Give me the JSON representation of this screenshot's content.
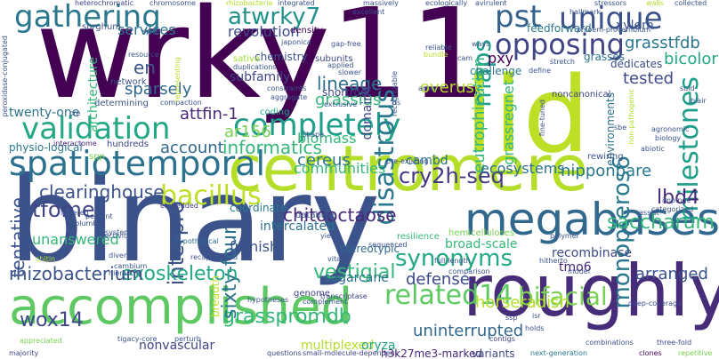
{
  "words": [
    {
      "id": "w0",
      "text": "wrky11",
      "color": "#440154"
    },
    {
      "id": "w1",
      "text": "binary",
      "color": "#3b528b"
    },
    {
      "id": "w2",
      "text": "iid",
      "color": "#bddf26"
    },
    {
      "id": "w3",
      "text": "centromere",
      "color": "#b5de2b"
    },
    {
      "id": "w4",
      "text": "roughly",
      "color": "#472c7a"
    },
    {
      "id": "w5",
      "text": "accomplished",
      "color": "#5ec962"
    },
    {
      "id": "w6",
      "text": "spatiotemporal",
      "color": "#2c728e"
    },
    {
      "id": "w7",
      "text": "megabases",
      "color": "#31688e"
    },
    {
      "id": "w8",
      "text": "gathering",
      "color": "#2a788e"
    },
    {
      "id": "w9",
      "text": "unique",
      "color": "#3b528b"
    },
    {
      "id": "w10",
      "text": "opposing",
      "color": "#414487"
    },
    {
      "id": "w11",
      "text": "pst",
      "color": "#33638d"
    },
    {
      "id": "w12",
      "text": "atwrky7",
      "color": "#21918c"
    },
    {
      "id": "w13",
      "text": "validation",
      "color": "#22a884"
    },
    {
      "id": "w14",
      "text": "completely",
      "color": "#1f9e89"
    },
    {
      "id": "w15",
      "text": "bacillus",
      "color": "#bddf26"
    },
    {
      "id": "w16",
      "text": "related14",
      "color": "#5ec962"
    },
    {
      "id": "w17",
      "text": "synonyms",
      "color": "#22a884"
    },
    {
      "id": "w18",
      "text": "bifacial",
      "color": "#7ad151"
    },
    {
      "id": "w19",
      "text": "grasspromdb",
      "color": "#35b779"
    },
    {
      "id": "w20",
      "text": "wox14",
      "color": "#3e4989"
    },
    {
      "id": "w21",
      "text": "maps",
      "color": "#1f9e89"
    },
    {
      "id": "w22",
      "text": "milestones",
      "color": "#1f9e89"
    },
    {
      "id": "w23",
      "text": "disastrous",
      "color": "#2a788e"
    },
    {
      "id": "w24",
      "text": "monopteros6",
      "color": "#2a788e"
    },
    {
      "id": "w25",
      "text": "chitooctaose",
      "color": "#482878"
    },
    {
      "id": "w26",
      "text": "cry2h-seq",
      "color": "#443983"
    },
    {
      "id": "w27",
      "text": "lbd4",
      "color": "#482878"
    },
    {
      "id": "w28",
      "text": "saccharum",
      "color": "#35b779"
    },
    {
      "id": "w29",
      "text": "interpro",
      "color": "#3b528b"
    },
    {
      "id": "w30",
      "text": "tfome",
      "color": "#414487"
    },
    {
      "id": "w31",
      "text": "sixty-four",
      "color": "#2c728e"
    },
    {
      "id": "w32",
      "text": "exoskeleton",
      "color": "#22a884"
    },
    {
      "id": "w33",
      "text": "rhizobacterium",
      "color": "#3b528b"
    },
    {
      "id": "w34",
      "text": "vestigial",
      "color": "#35b779"
    },
    {
      "id": "w35",
      "text": "defense",
      "color": "#3e4989"
    },
    {
      "id": "w36",
      "text": "uninterrupted",
      "color": "#31688e"
    },
    {
      "id": "w37",
      "text": "horseradish",
      "color": "#b5de2b"
    },
    {
      "id": "w38",
      "text": "arranged",
      "color": "#3b528b"
    },
    {
      "id": "w39",
      "text": "en",
      "color": "#3b528b"
    },
    {
      "id": "w40",
      "text": "sparsely",
      "color": "#31688e"
    },
    {
      "id": "w41",
      "text": "lineage",
      "color": "#2c728e"
    },
    {
      "id": "w42",
      "text": "grassius",
      "color": "#35b779"
    },
    {
      "id": "w43",
      "text": "eutrophication",
      "color": "#35b779"
    },
    {
      "id": "w44",
      "text": "grassregnet",
      "color": "#35b779"
    },
    {
      "id": "w45",
      "text": "grasstfdb",
      "color": "#2a788e"
    },
    {
      "id": "w46",
      "text": "bicolor",
      "color": "#22a884"
    },
    {
      "id": "w47",
      "text": "tested",
      "color": "#3e4989"
    },
    {
      "id": "w48",
      "text": "overuse",
      "color": "#b5de2b"
    },
    {
      "id": "w49",
      "text": "services",
      "color": "#2c728e"
    },
    {
      "id": "w50",
      "text": "revolution",
      "color": "#3e4989"
    },
    {
      "id": "w51",
      "text": "xylem",
      "color": "#3b528b"
    },
    {
      "id": "w52",
      "text": "pxy",
      "color": "#440154"
    },
    {
      "id": "w53",
      "text": "attfin-1",
      "color": "#482878"
    },
    {
      "id": "w54",
      "text": "informatics",
      "color": "#35b779"
    },
    {
      "id": "w55",
      "text": "account",
      "color": "#31688e"
    },
    {
      "id": "w56",
      "text": "cereus",
      "color": "#2a788e"
    },
    {
      "id": "w57",
      "text": "biomass",
      "color": "#35b779"
    },
    {
      "id": "w58",
      "text": "communities",
      "color": "#35b779"
    },
    {
      "id": "w59",
      "text": "clearinghouse",
      "color": "#3b528b"
    },
    {
      "id": "w60",
      "text": "tentative",
      "color": "#3b528b"
    },
    {
      "id": "w61",
      "text": "unanswered",
      "color": "#35b779"
    },
    {
      "id": "w62",
      "text": "furnish",
      "color": "#3b528b"
    },
    {
      "id": "w63",
      "text": "sugarcane",
      "color": "#2c728e"
    },
    {
      "id": "w64",
      "text": "ecosystems",
      "color": "#2c728e"
    },
    {
      "id": "w65",
      "text": "nipponbare",
      "color": "#2a788e"
    },
    {
      "id": "w66",
      "text": "architecture",
      "color": "#35b779"
    },
    {
      "id": "w67",
      "text": "ar156",
      "color": "#7ad151"
    },
    {
      "id": "w68",
      "text": "cambd",
      "color": "#2c728e"
    },
    {
      "id": "w69",
      "text": "twenty-one",
      "color": "#2c728e"
    },
    {
      "id": "w70",
      "text": "nonvascular",
      "color": "#414487"
    },
    {
      "id": "w71",
      "text": "multiplexed",
      "color": "#b5de2b"
    },
    {
      "id": "w72",
      "text": "domain4",
      "color": "#414487"
    },
    {
      "id": "w73",
      "text": "tmo6",
      "color": "#482878"
    },
    {
      "id": "w74",
      "text": "intercalated",
      "color": "#2c728e"
    },
    {
      "id": "w75",
      "text": "broad-scale",
      "color": "#35b779"
    },
    {
      "id": "w76",
      "text": "recombinase",
      "color": "#3e4989"
    },
    {
      "id": "w77",
      "text": "oryza",
      "color": "#22a884"
    },
    {
      "id": "w78",
      "text": "h3k27me3-marked",
      "color": "#482878"
    },
    {
      "id": "w79",
      "text": "variants",
      "color": "#3e4989"
    },
    {
      "id": "w80",
      "text": "breadth",
      "color": "#bddf26"
    },
    {
      "id": "w81",
      "text": "stereotypic",
      "color": "#31688e"
    },
    {
      "id": "w82",
      "text": "shortroot",
      "color": "#414487"
    },
    {
      "id": "w83",
      "text": "subfamily",
      "color": "#414487"
    },
    {
      "id": "w84",
      "text": "chemistry",
      "color": "#3b528b"
    },
    {
      "id": "w85",
      "text": "coordinate",
      "color": "#2a788e"
    },
    {
      "id": "w86",
      "text": "sorghum",
      "color": "#3b528b"
    },
    {
      "id": "w87",
      "text": "density",
      "color": "#440154"
    },
    {
      "id": "w88",
      "text": "network",
      "color": "#3b528b"
    },
    {
      "id": "w89",
      "text": "feedforward",
      "color": "#2a788e"
    },
    {
      "id": "w90",
      "text": "challenge",
      "color": "#2a788e"
    },
    {
      "id": "w91",
      "text": "dedicates",
      "color": "#3e4989"
    },
    {
      "id": "w92",
      "text": "grasses",
      "color": "#2c728e"
    },
    {
      "id": "w93",
      "text": "environments",
      "color": "#2c728e"
    },
    {
      "id": "w94",
      "text": "coding",
      "color": "#22a884"
    },
    {
      "id": "w95",
      "text": "sativa",
      "color": "#a0da39"
    },
    {
      "id": "w96",
      "text": "database",
      "color": "#3b528b"
    },
    {
      "id": "w97",
      "text": "hemicelluloses",
      "color": "#7ad151"
    },
    {
      "id": "w98",
      "text": "resilience",
      "color": "#35b779"
    },
    {
      "id": "w99",
      "text": "rewiring",
      "color": "#3b528b"
    },
    {
      "id": "w100",
      "text": "noncanonical",
      "color": "#414487"
    },
    {
      "id": "w101",
      "text": "determining",
      "color": "#3b528b"
    },
    {
      "id": "w102",
      "text": "subunits",
      "color": "#3e4989"
    },
    {
      "id": "w103",
      "text": "hundreds",
      "color": "#414487"
    },
    {
      "id": "w104",
      "text": "physio-logical",
      "color": "#2a788e"
    },
    {
      "id": "w105",
      "text": "spp",
      "color": "#7ad151"
    },
    {
      "id": "w106",
      "text": "interactome",
      "color": "#482878"
    },
    {
      "id": "w107",
      "text": "lowered",
      "color": "#3b528b"
    },
    {
      "id": "w108",
      "text": "embedded",
      "color": "#414487"
    },
    {
      "id": "w109",
      "text": "hypothetical",
      "color": "#31688e"
    },
    {
      "id": "w110",
      "text": "genome",
      "color": "#414487"
    },
    {
      "id": "w111",
      "text": "transcriptase",
      "color": "#414487"
    },
    {
      "id": "w112",
      "text": "deep-coverage",
      "color": "#3e4989"
    },
    {
      "id": "w113",
      "text": "appreciated",
      "color": "#7ad151"
    },
    {
      "id": "w114",
      "text": "majority",
      "color": "#414487"
    },
    {
      "id": "w115",
      "text": "tigacy-core",
      "color": "#3b528b"
    },
    {
      "id": "w116",
      "text": "perturb",
      "color": "#3b528b"
    },
    {
      "id": "w117",
      "text": "questions",
      "color": "#3e4989"
    },
    {
      "id": "w118",
      "text": "small-molecule-dependent",
      "color": "#414487"
    },
    {
      "id": "w119",
      "text": "next-generation",
      "color": "#2a788e"
    },
    {
      "id": "w120",
      "text": "combinations",
      "color": "#3b528b"
    },
    {
      "id": "w121",
      "text": "clones",
      "color": "#440154"
    },
    {
      "id": "w122",
      "text": "three-fold",
      "color": "#3e4989"
    },
    {
      "id": "w123",
      "text": "repetitive",
      "color": "#7ad151"
    },
    {
      "id": "w124",
      "text": "contigs",
      "color": "#414487"
    },
    {
      "id": "w125",
      "text": "holds",
      "color": "#3b528b"
    },
    {
      "id": "w126",
      "text": "ssp",
      "color": "#3e4989"
    },
    {
      "id": "w127",
      "text": "heterochromatic",
      "color": "#414487"
    },
    {
      "id": "w128",
      "text": "chromosome",
      "color": "#3b528b"
    },
    {
      "id": "w129",
      "text": "rhizobacteria",
      "color": "#b5de2b"
    },
    {
      "id": "w130",
      "text": "massively",
      "color": "#3b528b"
    },
    {
      "id": "w131",
      "text": "ecologically",
      "color": "#3b528b"
    },
    {
      "id": "w132",
      "text": "avirulent",
      "color": "#3b528b"
    },
    {
      "id": "w133",
      "text": "stressors",
      "color": "#3b528b"
    },
    {
      "id": "w134",
      "text": "walls",
      "color": "#b5de2b"
    },
    {
      "id": "w135",
      "text": "collected",
      "color": "#3b528b"
    },
    {
      "id": "w136",
      "text": "excellent",
      "color": "#3b528b"
    },
    {
      "id": "w137",
      "text": "hallmark",
      "color": "#3b528b"
    },
    {
      "id": "w138",
      "text": "integrated",
      "color": "#3b528b"
    },
    {
      "id": "w139",
      "text": "phloem-procambium",
      "color": "#3b528b"
    },
    {
      "id": "w140",
      "text": "japonica",
      "color": "#3b528b"
    },
    {
      "id": "w141",
      "text": "duplications",
      "color": "#3b528b"
    },
    {
      "id": "w142",
      "text": "constraints",
      "color": "#3b528b"
    },
    {
      "id": "w143",
      "text": "aggregate",
      "color": "#3b528b"
    },
    {
      "id": "w144",
      "text": "compaction",
      "color": "#3b528b"
    },
    {
      "id": "w145",
      "text": "exclusive",
      "color": "#3b528b"
    },
    {
      "id": "w146",
      "text": "slower",
      "color": "#3b528b"
    },
    {
      "id": "w147",
      "text": "applied",
      "color": "#3b528b"
    },
    {
      "id": "w148",
      "text": "gap-free",
      "color": "#3b528b"
    },
    {
      "id": "w149",
      "text": "reliable",
      "color": "#3b528b"
    },
    {
      "id": "w150",
      "text": "array",
      "color": "#3b528b"
    },
    {
      "id": "w151",
      "text": "stretch",
      "color": "#3b528b"
    },
    {
      "id": "w152",
      "text": "define",
      "color": "#3b528b"
    },
    {
      "id": "w153",
      "text": "agronomic",
      "color": "#3b528b"
    },
    {
      "id": "w154",
      "text": "biology",
      "color": "#3b528b"
    },
    {
      "id": "w155",
      "text": "pre-existing",
      "color": "#3b528b"
    },
    {
      "id": "w156",
      "text": "shape",
      "color": "#3b528b"
    },
    {
      "id": "w157",
      "text": "resource",
      "color": "#3b528b"
    },
    {
      "id": "w158",
      "text": "representing",
      "color": "#b5de2b"
    },
    {
      "id": "w159",
      "text": "sequenced",
      "color": "#3b528b"
    },
    {
      "id": "w160",
      "text": "yield",
      "color": "#3b528b"
    },
    {
      "id": "w161",
      "text": "polymer",
      "color": "#3b528b"
    },
    {
      "id": "w162",
      "text": "hitherto",
      "color": "#3b528b"
    },
    {
      "id": "w163",
      "text": "model",
      "color": "#3b528b"
    },
    {
      "id": "w164",
      "text": "categorized",
      "color": "#3b528b"
    },
    {
      "id": "w165",
      "text": "assist",
      "color": "#3b528b"
    },
    {
      "id": "w166",
      "text": "impinge",
      "color": "#3b528b"
    },
    {
      "id": "w167",
      "text": "comparison",
      "color": "#3b528b"
    },
    {
      "id": "w168",
      "text": "full-length",
      "color": "#3b528b"
    },
    {
      "id": "w169",
      "text": "hypotheses",
      "color": "#3b528b"
    },
    {
      "id": "w170",
      "text": "complement",
      "color": "#3b528b"
    },
    {
      "id": "w171",
      "text": "vital",
      "color": "#3b528b"
    },
    {
      "id": "w172",
      "text": "cambium",
      "color": "#3b528b"
    },
    {
      "id": "w173",
      "text": "hierarchy",
      "color": "#3b528b"
    },
    {
      "id": "w174",
      "text": "diverse",
      "color": "#3b528b"
    },
    {
      "id": "w175",
      "text": "selectivity",
      "color": "#3b528b"
    },
    {
      "id": "w176",
      "text": "percent",
      "color": "#3b528b"
    },
    {
      "id": "w177",
      "text": "columbia",
      "color": "#3b528b"
    },
    {
      "id": "w178",
      "text": "systems",
      "color": "#3b528b"
    },
    {
      "id": "w179",
      "text": "units",
      "color": "#3b528b"
    },
    {
      "id": "w180",
      "text": "chitin",
      "color": "#b5de2b"
    },
    {
      "id": "w181",
      "text": "peroxidase-conjugated",
      "color": "#3b528b"
    },
    {
      "id": "w182",
      "text": "cre",
      "color": "#3b528b"
    },
    {
      "id": "w183",
      "text": "isr",
      "color": "#3b528b"
    },
    {
      "id": "w184",
      "text": "fine-tuned",
      "color": "#3b528b"
    },
    {
      "id": "w185",
      "text": "recognizable",
      "color": "#3b528b"
    },
    {
      "id": "w186",
      "text": "cam",
      "color": "#3b528b"
    },
    {
      "id": "w187",
      "text": "ways",
      "color": "#3b528b"
    },
    {
      "id": "w188",
      "text": "non-pathogenic",
      "color": "#b5de2b"
    },
    {
      "id": "w189",
      "text": "sbe",
      "color": "#3b528b"
    },
    {
      "id": "w190",
      "text": "abiotic",
      "color": "#3b528b"
    },
    {
      "id": "w191",
      "text": "tfs",
      "color": "#3b528b"
    },
    {
      "id": "w192",
      "text": "spite",
      "color": "#3b528b"
    },
    {
      "id": "w193",
      "text": "bundle",
      "color": "#b5de2b"
    },
    {
      "id": "w194",
      "text": "recapitulated",
      "color": "#3b528b"
    },
    {
      "id": "w195",
      "text": "blair",
      "color": "#3b528b"
    },
    {
      "id": "w196",
      "text": "suid",
      "color": "#3b528b"
    }
  ]
}
